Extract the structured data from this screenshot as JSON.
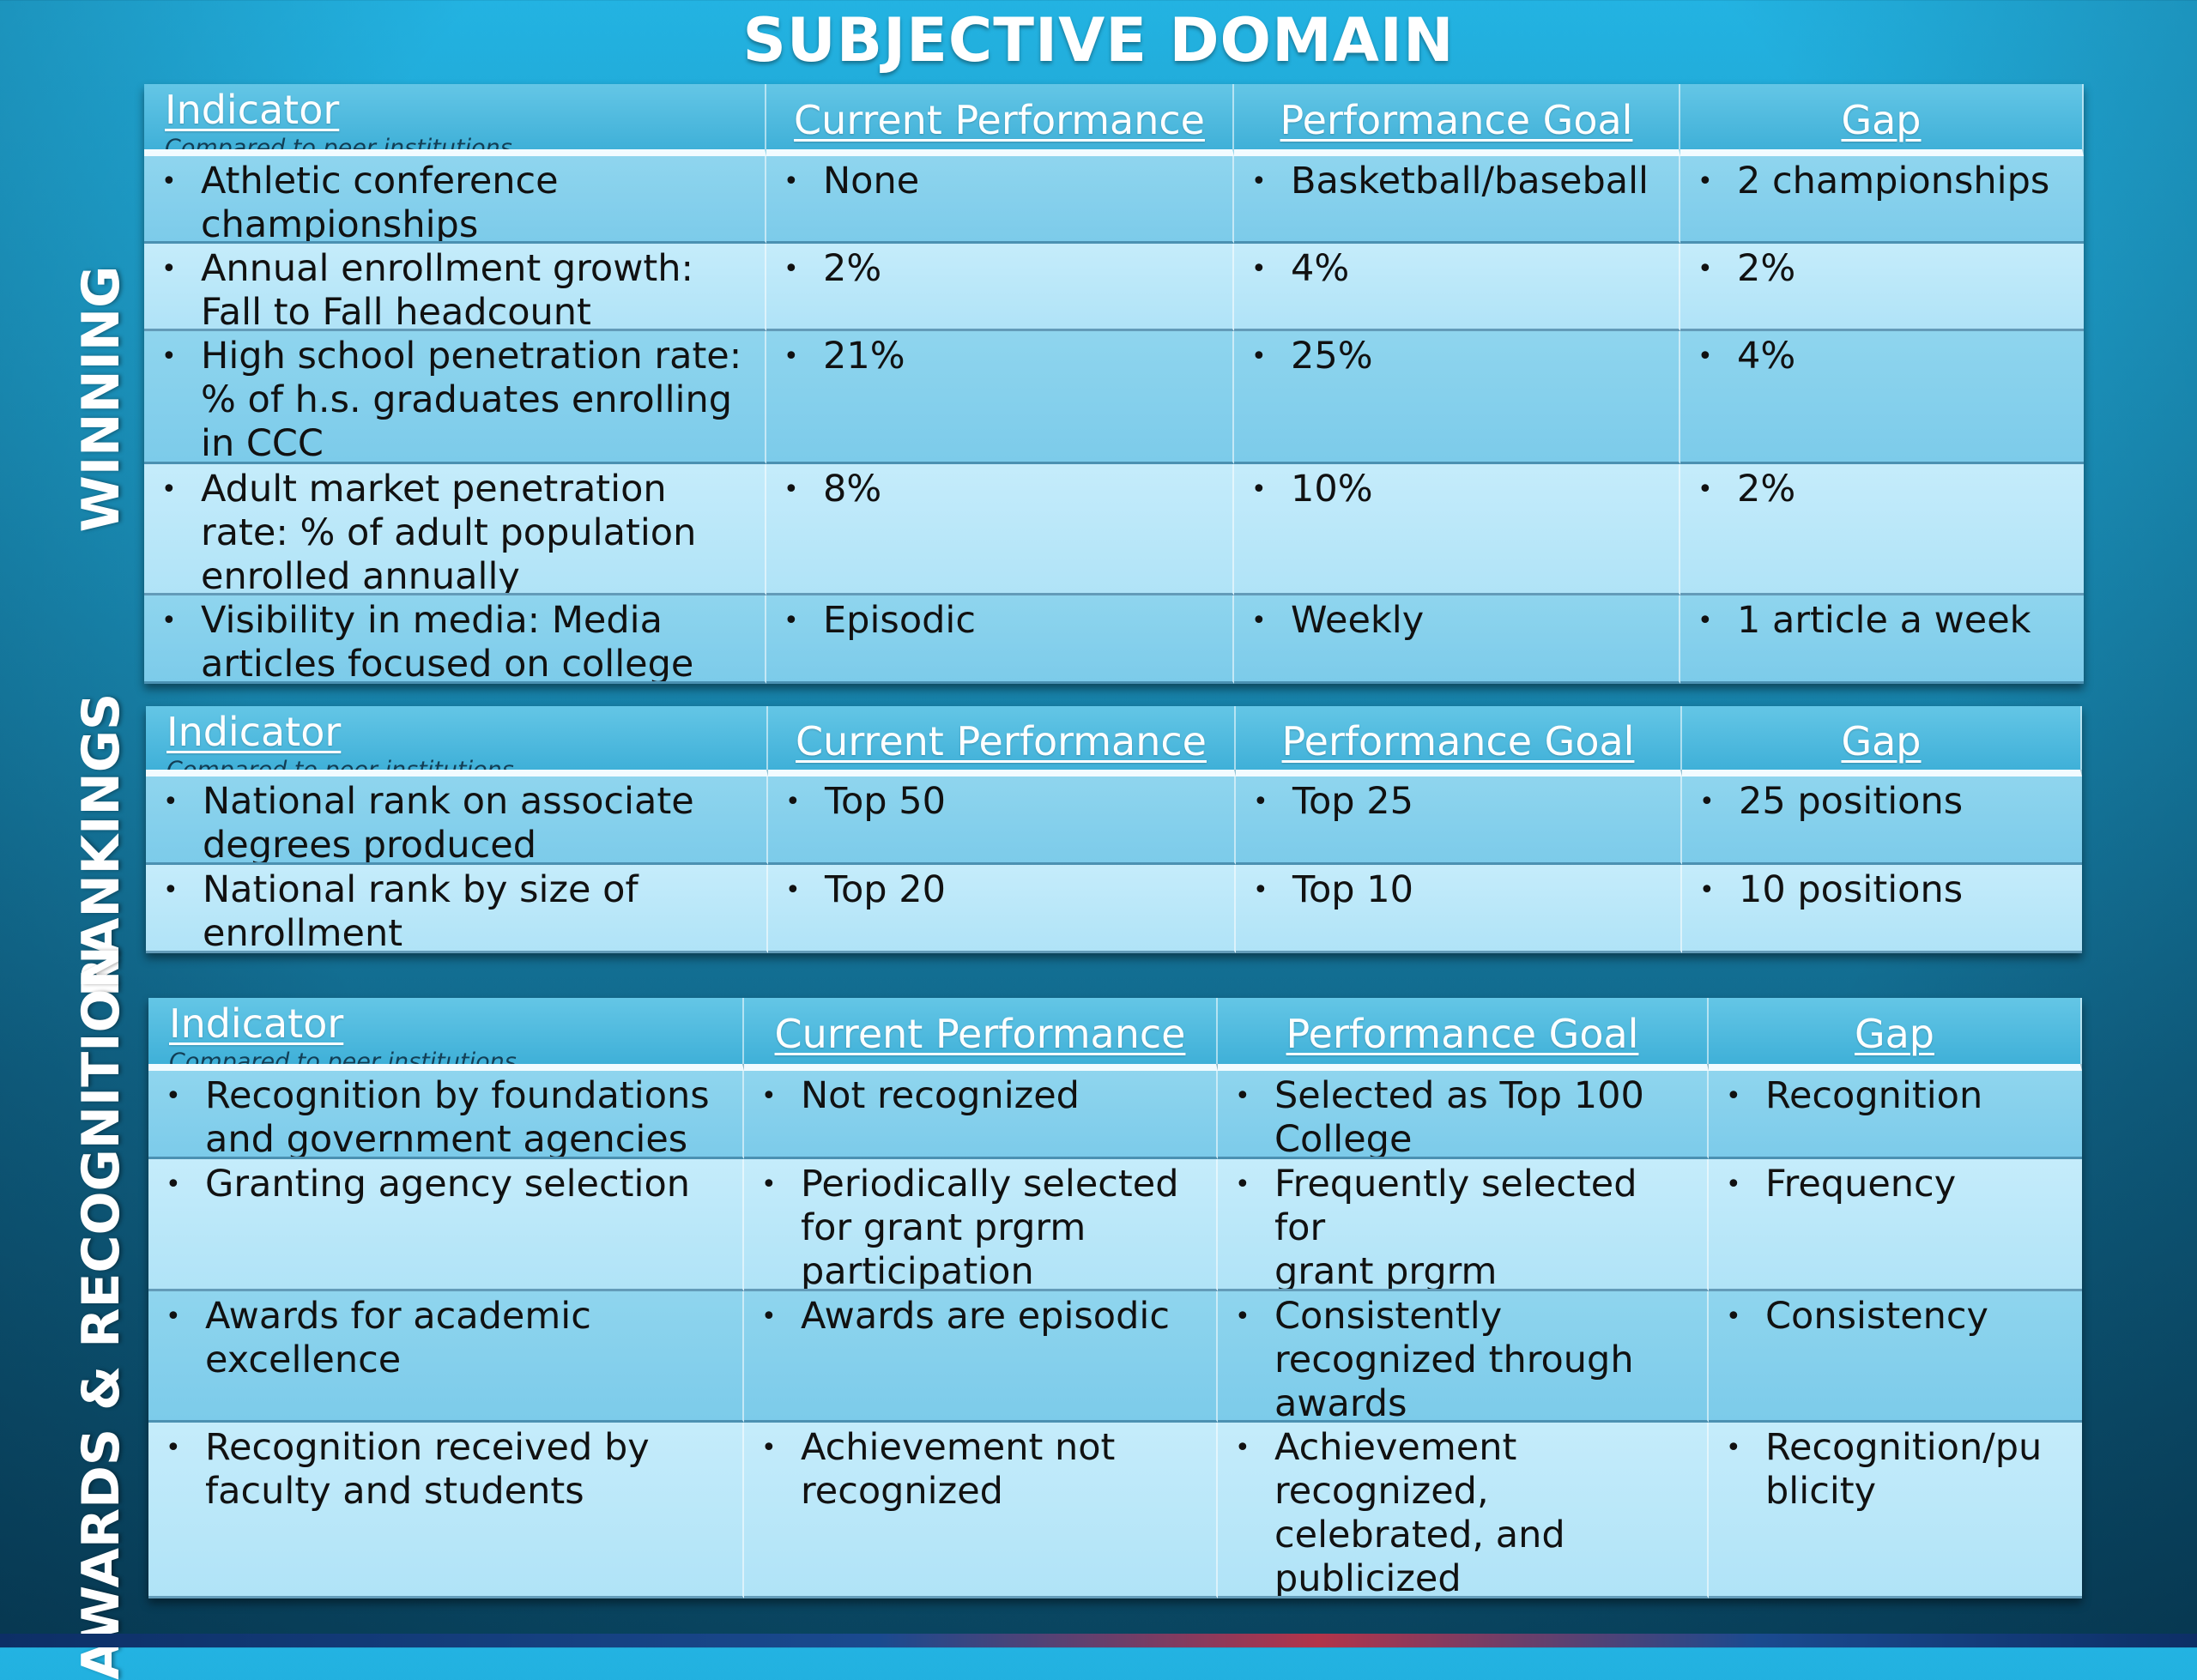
{
  "title": "SUBJECTIVE DOMAIN",
  "headers": {
    "indicator": "Indicator",
    "indicator_sub": "Compared to peer institutions",
    "current": "Current Performance",
    "goal": "Performance Goal",
    "gap": "Gap"
  },
  "sections": [
    {
      "label": "WINNING",
      "rows": [
        {
          "indicator": "Athletic conference\nchampionships",
          "current": "None",
          "goal": "Basketball/baseball",
          "gap": "2 championships"
        },
        {
          "indicator": "Annual enrollment growth:\nFall to Fall headcount",
          "current": "2%",
          "goal": "4%",
          "gap": "2%"
        },
        {
          "indicator": "High school penetration rate:\n% of h.s. graduates enrolling\nin CCC",
          "current": "21%",
          "goal": "25%",
          "gap": "4%"
        },
        {
          "indicator": "Adult market penetration\nrate: % of adult population\nenrolled annually",
          "current": "8%",
          "goal": "10%",
          "gap": "2%"
        },
        {
          "indicator": "Visibility in media: Media\narticles focused on college",
          "current": "Episodic",
          "goal": "Weekly",
          "gap": "1 article a week"
        }
      ]
    },
    {
      "label": "RANKINGS",
      "rows": [
        {
          "indicator": "National rank on associate\ndegrees produced",
          "current": "Top 50",
          "goal": "Top 25",
          "gap": "25 positions"
        },
        {
          "indicator": "National rank by size of\nenrollment",
          "current": "Top 20",
          "goal": "Top 10",
          "gap": "10 positions"
        }
      ]
    },
    {
      "label": "AWARDS & RECOGNITION",
      "rows": [
        {
          "indicator": "Recognition by foundations\nand government agencies",
          "current": "Not recognized",
          "goal": "Selected as Top 100\nCollege",
          "gap": "Recognition"
        },
        {
          "indicator": "Granting agency selection",
          "current": "Periodically selected\nfor grant prgrm\nparticipation",
          "goal": "Frequently selected for\ngrant prgrm\nparticipation",
          "gap": "Frequency"
        },
        {
          "indicator": "Awards for academic\nexcellence",
          "current": "Awards are episodic",
          "goal": "Consistently\nrecognized through\nawards",
          "gap": "Consistency"
        },
        {
          "indicator": "Recognition received by\nfaculty and students",
          "current": "Achievement not\nrecognized",
          "goal": "Achievement\nrecognized,\ncelebrated, and\npublicized",
          "gap": "Recognition/pu\nblicity"
        }
      ]
    }
  ]
}
